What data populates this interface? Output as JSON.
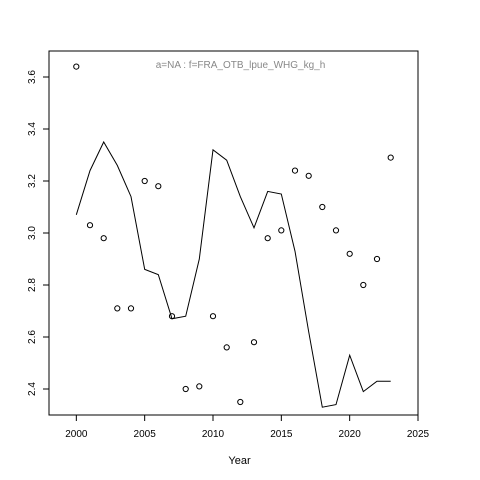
{
  "chart_data": {
    "type": "scatter",
    "title": "",
    "annotation": "a=NA  :  f=FRA_OTB_lpue_WHG_kg_h",
    "xlabel": "Year",
    "ylabel": "",
    "xlim": [
      1998,
      2025
    ],
    "ylim": [
      2.3,
      3.7
    ],
    "x_ticks": [
      2000,
      2005,
      2010,
      2015,
      2020,
      2025
    ],
    "y_ticks": [
      2.4,
      2.6,
      2.8,
      3.0,
      3.2,
      3.4,
      3.6
    ],
    "x_tick_labels": [
      "2000",
      "2005",
      "2010",
      "2015",
      "2020",
      "2025"
    ],
    "y_tick_labels": [
      "2.4",
      "2.6",
      "2.8",
      "3.0",
      "3.2",
      "3.4",
      "3.6"
    ],
    "grid": false,
    "legend": "none",
    "series": [
      {
        "type": "scatter",
        "marker": "open-circle",
        "x": [
          2000,
          2001,
          2002,
          2003,
          2004,
          2005,
          2006,
          2007,
          2008,
          2009,
          2010,
          2011,
          2012,
          2013,
          2014,
          2015,
          2016,
          2017,
          2018,
          2019,
          2020,
          2021,
          2022,
          2023
        ],
        "y": [
          3.64,
          3.03,
          2.98,
          2.71,
          2.71,
          3.2,
          3.18,
          2.68,
          2.4,
          2.41,
          2.68,
          2.56,
          2.35,
          2.58,
          2.98,
          3.01,
          3.24,
          3.22,
          3.1,
          3.01,
          2.92,
          2.8,
          2.9,
          3.29
        ]
      },
      {
        "type": "line",
        "x": [
          2000,
          2001,
          2002,
          2003,
          2004,
          2005,
          2006,
          2007,
          2008,
          2009,
          2010,
          2011,
          2012,
          2013,
          2014,
          2015,
          2016,
          2017,
          2018,
          2019,
          2020,
          2021,
          2022,
          2023
        ],
        "y": [
          3.07,
          3.24,
          3.35,
          3.26,
          3.14,
          2.86,
          2.84,
          2.67,
          2.68,
          2.9,
          3.32,
          3.28,
          3.14,
          3.02,
          3.16,
          3.15,
          2.93,
          2.62,
          2.33,
          2.34,
          2.53,
          2.39,
          2.43,
          2.43
        ]
      }
    ]
  }
}
